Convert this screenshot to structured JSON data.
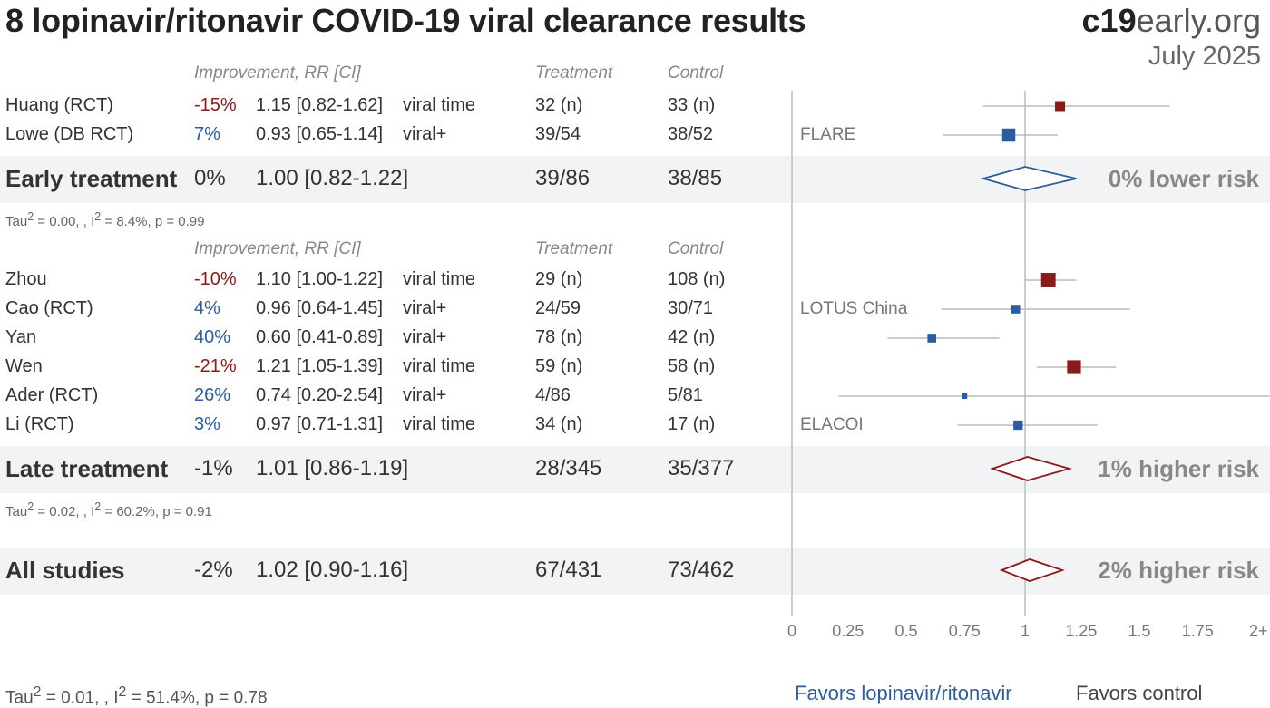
{
  "header": {
    "title": "8 lopinavir/ritonavir COVID-19 viral clearance results",
    "brand_bold": "c19",
    "brand_rest": "early.org",
    "date": "July 2025"
  },
  "columns": {
    "improvement": "Improvement, RR [CI]",
    "treatment": "Treatment",
    "control": "Control"
  },
  "groups": [
    {
      "studies": [
        {
          "name": "Huang (RCT)",
          "improvement": "-15%",
          "rr_text": "1.15 [0.82-1.62]",
          "outcome": "viral time",
          "treatment": "32 (n)",
          "control": "33 (n)",
          "trial": ""
        },
        {
          "name": "Lowe (DB RCT)",
          "improvement": "7%",
          "rr_text": "0.93 [0.65-1.14]",
          "outcome": "viral+",
          "treatment": "39/54",
          "control": "38/52",
          "trial": "FLARE"
        }
      ],
      "summary": {
        "name": "Early treatment",
        "improvement": "0%",
        "rr_text": "1.00 [0.82-1.22]",
        "treatment": "39/86",
        "control": "38/85",
        "risk": "0% lower risk"
      },
      "heterogeneity": {
        "tau": "Tau",
        "i": ", I",
        "rest": " = 0.00, ",
        "rest_i": " = 8.4%, p = 0.99"
      }
    },
    {
      "studies": [
        {
          "name": "Zhou",
          "improvement": "-10%",
          "rr_text": "1.10 [1.00-1.22]",
          "outcome": "viral time",
          "treatment": "29 (n)",
          "control": "108 (n)",
          "trial": ""
        },
        {
          "name": "Cao (RCT)",
          "improvement": "4%",
          "rr_text": "0.96 [0.64-1.45]",
          "outcome": "viral+",
          "treatment": "24/59",
          "control": "30/71",
          "trial": "LOTUS China"
        },
        {
          "name": "Yan",
          "improvement": "40%",
          "rr_text": "0.60 [0.41-0.89]",
          "outcome": "viral+",
          "treatment": "78 (n)",
          "control": "42 (n)",
          "trial": ""
        },
        {
          "name": "Wen",
          "improvement": "-21%",
          "rr_text": "1.21 [1.05-1.39]",
          "outcome": "viral time",
          "treatment": "59 (n)",
          "control": "58 (n)",
          "trial": ""
        },
        {
          "name": "Ader (RCT)",
          "improvement": "26%",
          "rr_text": "0.74 [0.20-2.54]",
          "outcome": "viral+",
          "treatment": "4/86",
          "control": "5/81",
          "trial": ""
        },
        {
          "name": "Li (RCT)",
          "improvement": "3%",
          "rr_text": "0.97 [0.71-1.31]",
          "outcome": "viral time",
          "treatment": "34 (n)",
          "control": "17 (n)",
          "trial": "ELACOI"
        }
      ],
      "summary": {
        "name": "Late treatment",
        "improvement": "-1%",
        "rr_text": "1.01 [0.86-1.19]",
        "treatment": "28/345",
        "control": "35/377",
        "risk": "1% higher risk"
      },
      "heterogeneity": {
        "tau": "Tau",
        "i": ", I",
        "rest": " = 0.02, ",
        "rest_i": " = 60.2%, p = 0.91"
      }
    }
  ],
  "overall": {
    "name": "All studies",
    "improvement": "-2%",
    "rr_text": "1.02 [0.90-1.16]",
    "treatment": "67/431",
    "control": "73/462",
    "risk": "2% higher risk"
  },
  "overall_heterogeneity": {
    "tau": "Tau",
    "i": ", I",
    "rest": " = 0.01, ",
    "rest_i": " = 51.4%, p = 0.78"
  },
  "axis": {
    "ticks": [
      "0",
      "0.25",
      "0.5",
      "0.75",
      "1",
      "1.25",
      "1.5",
      "1.75",
      "2+"
    ]
  },
  "favors": {
    "left": "Favors lopinavir/ritonavir",
    "right": "Favors control"
  },
  "colors": {
    "benefit": "#2a5d9f",
    "harm": "#8b1a1a",
    "ci_line": "#bbbbbb",
    "axis": "#cccccc",
    "band": "#f2f3f5"
  },
  "chart_data": {
    "type": "forest",
    "x_scale": "risk ratio",
    "xlim": [
      0,
      2
    ],
    "null_value": 1,
    "studies": [
      {
        "name": "Huang (RCT)",
        "group": "Early treatment",
        "rr": 1.15,
        "lo": 0.82,
        "hi": 1.62,
        "weight": 0.5
      },
      {
        "name": "Lowe (DB RCT)",
        "group": "Early treatment",
        "rr": 0.93,
        "lo": 0.65,
        "hi": 1.14,
        "weight": 0.75
      },
      {
        "name": "Zhou",
        "group": "Late treatment",
        "rr": 1.1,
        "lo": 1.0,
        "hi": 1.22,
        "weight": 0.85
      },
      {
        "name": "Cao (RCT)",
        "group": "Late treatment",
        "rr": 0.96,
        "lo": 0.64,
        "hi": 1.45,
        "weight": 0.4
      },
      {
        "name": "Yan",
        "group": "Late treatment",
        "rr": 0.6,
        "lo": 0.41,
        "hi": 0.89,
        "weight": 0.4
      },
      {
        "name": "Wen",
        "group": "Late treatment",
        "rr": 1.21,
        "lo": 1.05,
        "hi": 1.39,
        "weight": 0.8
      },
      {
        "name": "Ader (RCT)",
        "group": "Late treatment",
        "rr": 0.74,
        "lo": 0.2,
        "hi": 2.54,
        "weight": 0.15
      },
      {
        "name": "Li (RCT)",
        "group": "Late treatment",
        "rr": 0.97,
        "lo": 0.71,
        "hi": 1.31,
        "weight": 0.45
      }
    ],
    "summaries": [
      {
        "name": "Early treatment",
        "rr": 1.0,
        "lo": 0.82,
        "hi": 1.22
      },
      {
        "name": "Late treatment",
        "rr": 1.01,
        "lo": 0.86,
        "hi": 1.19
      },
      {
        "name": "All studies",
        "rr": 1.02,
        "lo": 0.9,
        "hi": 1.16
      }
    ]
  }
}
